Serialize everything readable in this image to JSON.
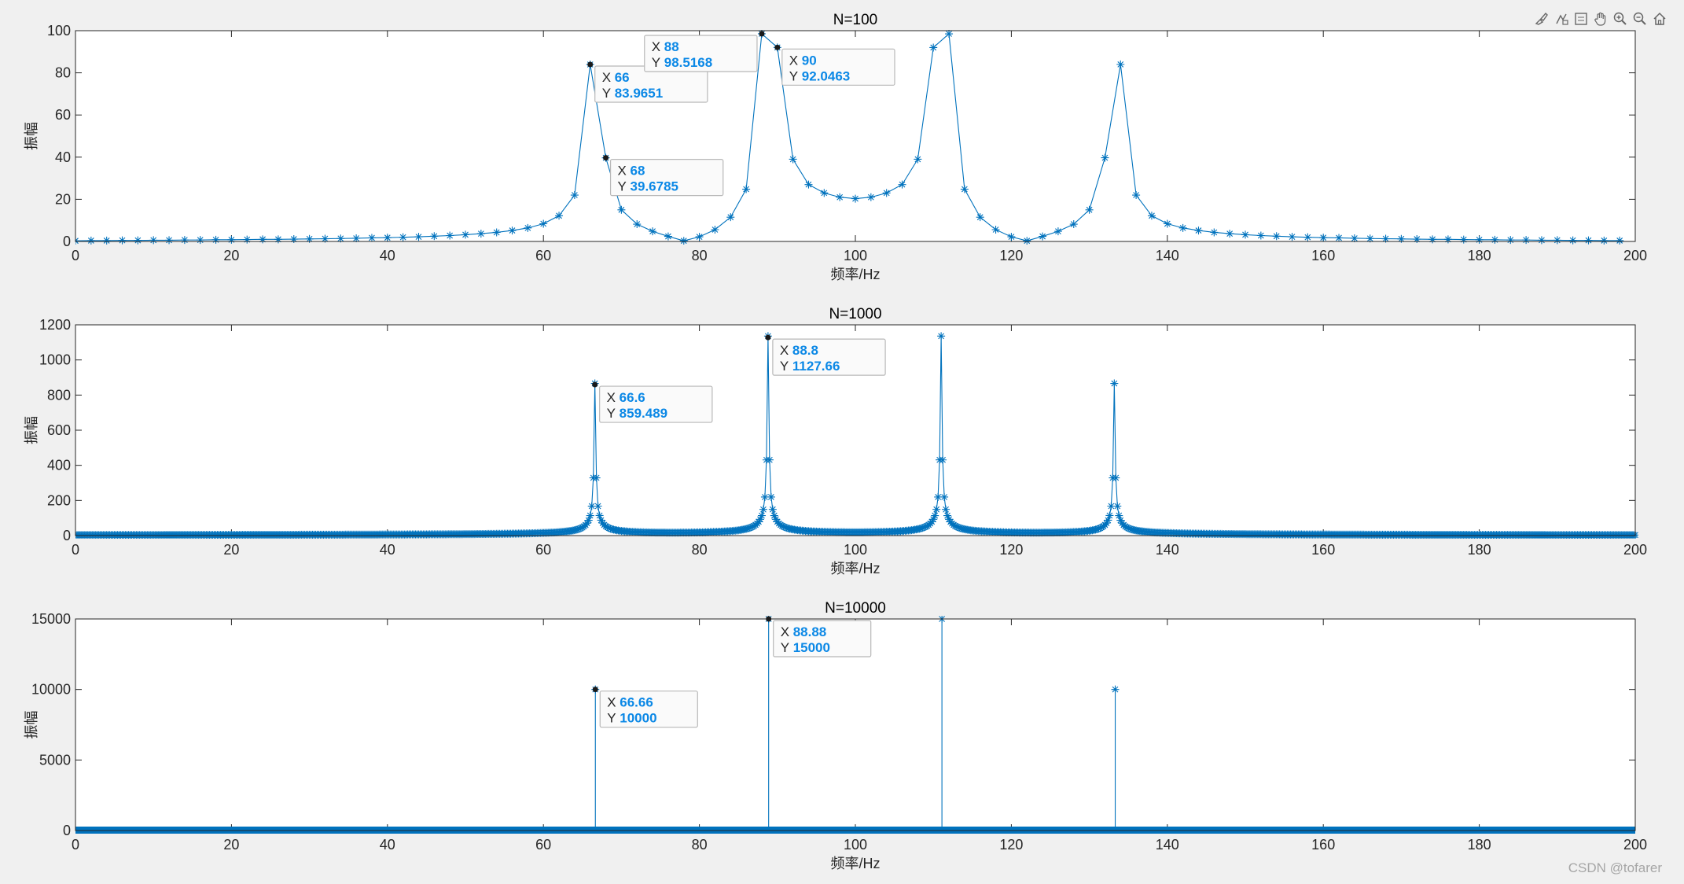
{
  "toolbar": {
    "icons": [
      "brush-icon",
      "data-tip-icon",
      "legend-icon",
      "pan-icon",
      "zoom-in-icon",
      "zoom-out-icon",
      "home-icon"
    ]
  },
  "watermark": "CSDN @tofarer",
  "colors": {
    "line": "#0072bd",
    "tip_value": "#0b88e6",
    "axes_bg": "#ffffff",
    "figure_bg": "#f0f0f0"
  },
  "chart_data": [
    {
      "type": "line",
      "marker": "asterisk",
      "title": "N=100",
      "xlabel": "频率/Hz",
      "ylabel": "振幅",
      "xlim": [
        0,
        200
      ],
      "ylim": [
        0,
        100
      ],
      "xticks": [
        0,
        20,
        40,
        60,
        80,
        100,
        120,
        140,
        160,
        180,
        200
      ],
      "yticks": [
        0,
        20,
        40,
        60,
        80,
        100
      ],
      "series": [
        {
          "x": [
            0,
            2,
            4,
            6,
            8,
            10,
            12,
            14,
            16,
            18,
            20,
            22,
            24,
            26,
            28,
            30,
            32,
            34,
            36,
            38,
            40,
            42,
            44,
            46,
            48,
            50,
            52,
            54,
            56,
            58,
            60,
            62,
            64,
            66,
            68,
            70,
            72,
            74,
            76,
            78,
            80,
            82,
            84,
            86,
            88,
            90,
            92,
            94,
            96,
            98,
            100,
            102,
            104,
            106,
            108,
            110,
            112,
            114,
            116,
            118,
            120,
            122,
            124,
            126,
            128,
            130,
            132,
            134,
            136,
            138,
            140,
            142,
            144,
            146,
            148,
            150,
            152,
            154,
            156,
            158,
            160,
            162,
            164,
            166,
            168,
            170,
            172,
            174,
            176,
            178,
            180,
            182,
            184,
            186,
            188,
            190,
            192,
            194,
            196,
            198
          ],
          "y": [
            0.3,
            0.4,
            0.4,
            0.5,
            0.5,
            0.6,
            0.6,
            0.7,
            0.7,
            0.8,
            0.8,
            0.9,
            1.0,
            1.0,
            1.1,
            1.2,
            1.3,
            1.4,
            1.5,
            1.7,
            1.8,
            2.0,
            2.2,
            2.5,
            2.8,
            3.2,
            3.7,
            4.3,
            5.2,
            6.4,
            8.4,
            12.2,
            22.0,
            83.9651,
            39.6785,
            15.0,
            8.2,
            4.8,
            2.4,
            0.3,
            2.2,
            5.6,
            11.5,
            24.8,
            98.5168,
            92.0463,
            39.0,
            27.0,
            23.0,
            21.0,
            20.3,
            21.0,
            23.0,
            27.0,
            39.0,
            92.0,
            98.5,
            24.8,
            11.5,
            5.6,
            2.2,
            0.3,
            2.4,
            4.8,
            8.2,
            15.0,
            39.7,
            84.0,
            22.0,
            12.2,
            8.4,
            6.4,
            5.2,
            4.3,
            3.7,
            3.2,
            2.8,
            2.5,
            2.2,
            2.0,
            1.8,
            1.7,
            1.5,
            1.4,
            1.3,
            1.2,
            1.1,
            1.0,
            1.0,
            0.9,
            0.8,
            0.8,
            0.7,
            0.7,
            0.6,
            0.6,
            0.5,
            0.5,
            0.4,
            0.4
          ]
        }
      ],
      "datatips": [
        {
          "x": 66,
          "y": 83.9651,
          "x_text": "66",
          "y_text": "83.9651",
          "side": "right"
        },
        {
          "x": 68,
          "y": 39.6785,
          "x_text": "68",
          "y_text": "39.6785",
          "side": "right"
        },
        {
          "x": 88,
          "y": 98.5168,
          "x_text": "88",
          "y_text": "98.5168",
          "side": "left"
        },
        {
          "x": 90,
          "y": 92.0463,
          "x_text": "90",
          "y_text": "92.0463",
          "side": "right"
        }
      ]
    },
    {
      "type": "line",
      "marker": "asterisk",
      "title": "N=1000",
      "xlabel": "频率/Hz",
      "ylabel": "振幅",
      "xlim": [
        0,
        200
      ],
      "ylim": [
        0,
        1200
      ],
      "xticks": [
        0,
        20,
        40,
        60,
        80,
        100,
        120,
        140,
        160,
        180,
        200
      ],
      "yticks": [
        0,
        200,
        400,
        600,
        800,
        1000,
        1200
      ],
      "peaks": [
        {
          "center": 66.6,
          "amplitude": 859.489
        },
        {
          "center": 88.8,
          "amplitude": 1127.66
        },
        {
          "center": 111.0,
          "amplitude": 1127.66
        },
        {
          "center": 133.2,
          "amplitude": 859.489
        }
      ],
      "x_step": 0.2,
      "datatips": [
        {
          "x": 66.6,
          "y": 859.489,
          "x_text": "66.6",
          "y_text": "859.489",
          "side": "right"
        },
        {
          "x": 88.8,
          "y": 1127.66,
          "x_text": "88.8",
          "y_text": "1127.66",
          "side": "right"
        }
      ]
    },
    {
      "type": "line",
      "marker": "asterisk",
      "title": "N=10000",
      "xlabel": "频率/Hz",
      "ylabel": "振幅",
      "xlim": [
        0,
        200
      ],
      "ylim": [
        0,
        15000
      ],
      "xticks": [
        0,
        20,
        40,
        60,
        80,
        100,
        120,
        140,
        160,
        180,
        200
      ],
      "yticks": [
        0,
        5000,
        10000,
        15000
      ],
      "peaks": [
        {
          "center": 66.66,
          "amplitude": 10000
        },
        {
          "center": 88.88,
          "amplitude": 15000
        },
        {
          "center": 111.1,
          "amplitude": 15000
        },
        {
          "center": 133.32,
          "amplitude": 10000
        }
      ],
      "datatips": [
        {
          "x": 66.66,
          "y": 10000,
          "x_text": "66.66",
          "y_text": "10000",
          "side": "right"
        },
        {
          "x": 88.88,
          "y": 15000,
          "x_text": "88.88",
          "y_text": "15000",
          "side": "right"
        }
      ]
    }
  ]
}
